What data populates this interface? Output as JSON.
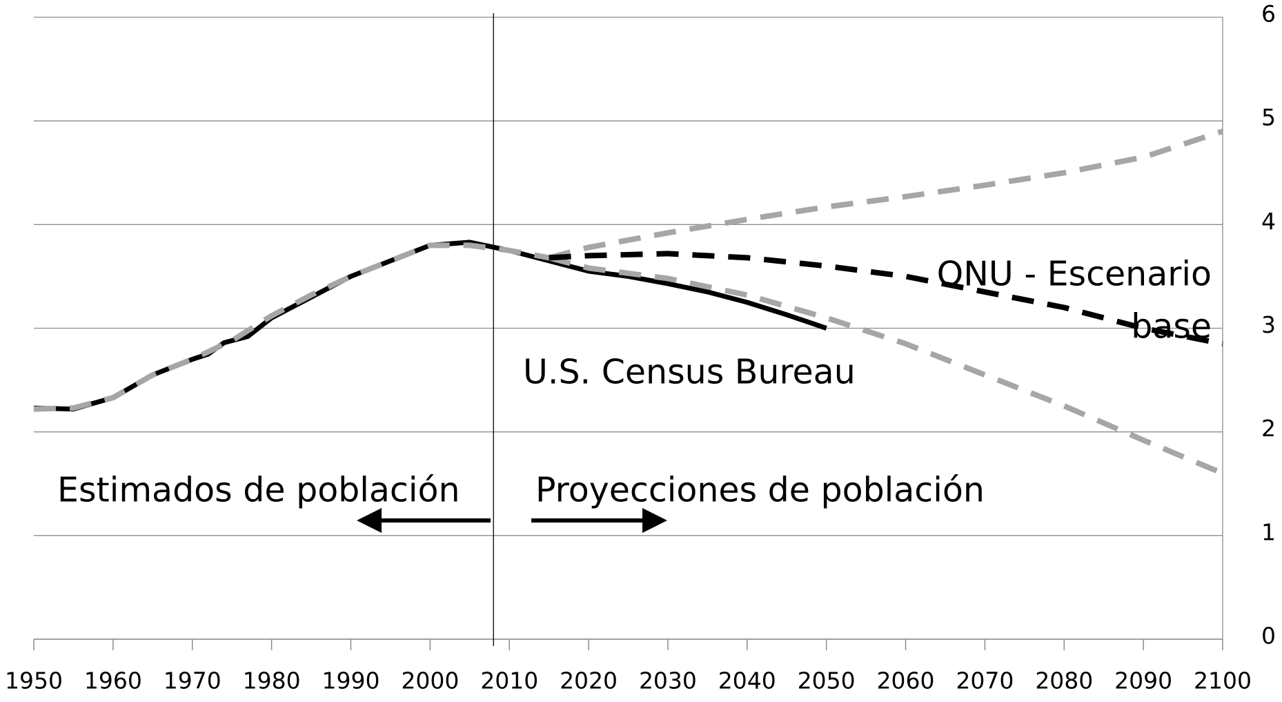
{
  "chart_data": {
    "type": "line",
    "xlim": [
      1950,
      2100
    ],
    "xticks": [
      1950,
      1960,
      1970,
      1980,
      1990,
      2000,
      2010,
      2020,
      2030,
      2040,
      2050,
      2060,
      2070,
      2080,
      2090,
      2100
    ],
    "ylim": [
      0,
      6
    ],
    "yticks": [
      0,
      1,
      2,
      3,
      4,
      5,
      6
    ],
    "grid": true,
    "vline_x": 2008,
    "series": [
      {
        "color": "#000000",
        "dash": false,
        "x": [
          1950,
          1955,
          1960,
          1965,
          1970,
          1972,
          1974,
          1977,
          1980,
          1985,
          1990,
          1995,
          2000,
          2005,
          2010,
          2015,
          2020,
          2025,
          2030,
          2035,
          2040,
          2045,
          2050
        ],
        "values": [
          2.23,
          2.22,
          2.33,
          2.55,
          2.7,
          2.75,
          2.86,
          2.92,
          3.1,
          3.3,
          3.5,
          3.65,
          3.8,
          3.83,
          3.75,
          3.65,
          3.55,
          3.5,
          3.43,
          3.35,
          3.25,
          3.13,
          3.0
        ]
      },
      {
        "color": "#a6a6a6",
        "dash": true,
        "x": [
          1950,
          1955,
          1960,
          1965,
          1970,
          1975,
          1980,
          1985,
          1990,
          1995,
          2000,
          2005,
          2010,
          2015
        ],
        "values": [
          2.22,
          2.23,
          2.33,
          2.55,
          2.7,
          2.88,
          3.12,
          3.32,
          3.5,
          3.65,
          3.8,
          3.8,
          3.75,
          3.68
        ]
      },
      {
        "color": "#a6a6a6",
        "dash": true,
        "x": [
          2015,
          2020,
          2030,
          2040,
          2050,
          2060,
          2070,
          2080,
          2090,
          2100
        ],
        "values": [
          3.68,
          3.78,
          3.92,
          4.05,
          4.17,
          4.27,
          4.38,
          4.5,
          4.65,
          4.9
        ]
      },
      {
        "color": "#a6a6a6",
        "dash": true,
        "x": [
          2015,
          2020,
          2030,
          2040,
          2050,
          2060,
          2070,
          2080,
          2090,
          2100
        ],
        "values": [
          3.68,
          3.58,
          3.48,
          3.32,
          3.1,
          2.85,
          2.55,
          2.25,
          1.92,
          1.6
        ]
      },
      {
        "color": "#000000",
        "dash": true,
        "x": [
          2015,
          2020,
          2030,
          2040,
          2050,
          2060,
          2070,
          2080,
          2090,
          2100
        ],
        "values": [
          3.68,
          3.7,
          3.72,
          3.68,
          3.6,
          3.5,
          3.35,
          3.2,
          3.0,
          2.85
        ]
      }
    ],
    "annotations": [
      "ONU - Escenario",
      "base",
      "U.S. Census Bureau",
      "Estimados de población",
      "Proyecciones de población"
    ]
  }
}
